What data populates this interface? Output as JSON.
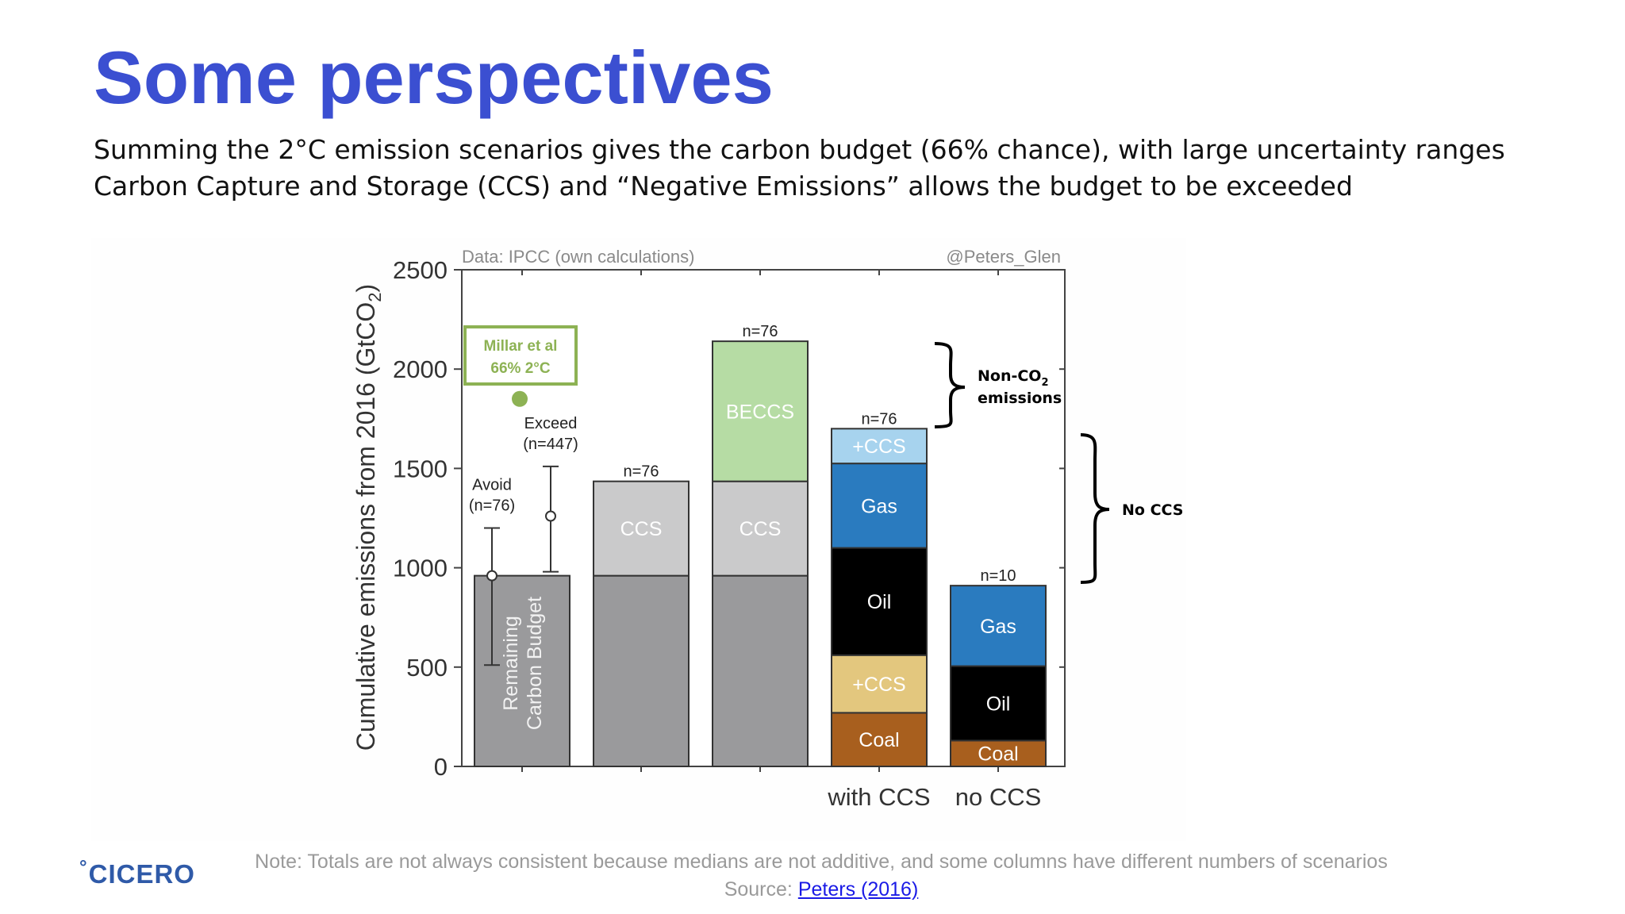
{
  "slide": {
    "title": "Some perspectives",
    "subtitle_lines": [
      "Summing the 2°C emission scenarios gives the carbon budget (66% chance), with large uncertainty ranges",
      "Carbon Capture and Storage (CCS) and “Negative Emissions” allows the budget to be exceeded"
    ],
    "note": "Note: Totals are not always consistent because medians are not additive, and some columns have different numbers of scenarios",
    "source_prefix": "Source: ",
    "source_link": "Peters (2016)",
    "logo": "CICERO",
    "logo_deg": "°"
  },
  "chart_data": {
    "type": "bar",
    "ylabel": "Cumulative emissions from 2016 (GtCO",
    "ylabel_sub": "2",
    "ylabel_end": ")",
    "ylim": [
      0,
      2500
    ],
    "yticks": [
      0,
      500,
      1000,
      1500,
      2000,
      2500
    ],
    "data_credit": "Data: IPCC (own calculations)",
    "author_credit": "@Peters_Glen",
    "categories": [
      "",
      "",
      "",
      "with CCS",
      "no CCS"
    ],
    "columns": [
      {
        "segments": [
          {
            "label": "Remaining Carbon Budget",
            "label_lines": [
              "Remaining",
              "Carbon Budget"
            ],
            "from": 0,
            "to": 960,
            "color": "#9a9a9c"
          }
        ],
        "top_label": ""
      },
      {
        "segments": [
          {
            "label": "",
            "from": 0,
            "to": 960,
            "color": "#9a9a9c"
          },
          {
            "label": "CCS",
            "from": 960,
            "to": 1435,
            "color": "#cacacb"
          }
        ],
        "top_label": "n=76"
      },
      {
        "segments": [
          {
            "label": "",
            "from": 0,
            "to": 960,
            "color": "#9a9a9c"
          },
          {
            "label": "CCS",
            "from": 960,
            "to": 1435,
            "color": "#cacacb"
          },
          {
            "label": "BECCS",
            "from": 1435,
            "to": 2140,
            "color": "#b6dca4"
          }
        ],
        "top_label": "n=76"
      },
      {
        "segments": [
          {
            "label": "Coal",
            "from": 0,
            "to": 270,
            "color": "#a85f1e"
          },
          {
            "label": "+CCS",
            "from": 270,
            "to": 560,
            "color": "#e3c77e"
          },
          {
            "label": "Oil",
            "from": 560,
            "to": 1100,
            "color": "#000000"
          },
          {
            "label": "Gas",
            "from": 1100,
            "to": 1525,
            "color": "#2a7bbf"
          },
          {
            "label": "+CCS",
            "from": 1525,
            "to": 1700,
            "color": "#a7d3ee"
          }
        ],
        "top_label": "n=76"
      },
      {
        "segments": [
          {
            "label": "Coal",
            "from": 0,
            "to": 130,
            "color": "#a85f1e"
          },
          {
            "label": "Oil",
            "from": 130,
            "to": 505,
            "color": "#000000"
          },
          {
            "label": "Gas",
            "from": 505,
            "to": 910,
            "color": "#2a7bbf"
          }
        ],
        "top_label": "n=10"
      }
    ],
    "error_bars": [
      {
        "label_lines": [
          "Avoid",
          "(n=76)"
        ],
        "median": 960,
        "low": 510,
        "high": 1200
      },
      {
        "label_lines": [
          "Exceed",
          "(n=447)"
        ],
        "median": 1260,
        "low": 980,
        "high": 1510
      }
    ],
    "millar": {
      "label_lines": [
        "Millar et al",
        "66% 2°C"
      ],
      "value": 1850,
      "color": "#8db254"
    },
    "annotations": {
      "non_co2": {
        "line1": "Non-CO",
        "sub": "2",
        "line2": "emissions"
      },
      "no_ccs": "No CCS"
    }
  }
}
